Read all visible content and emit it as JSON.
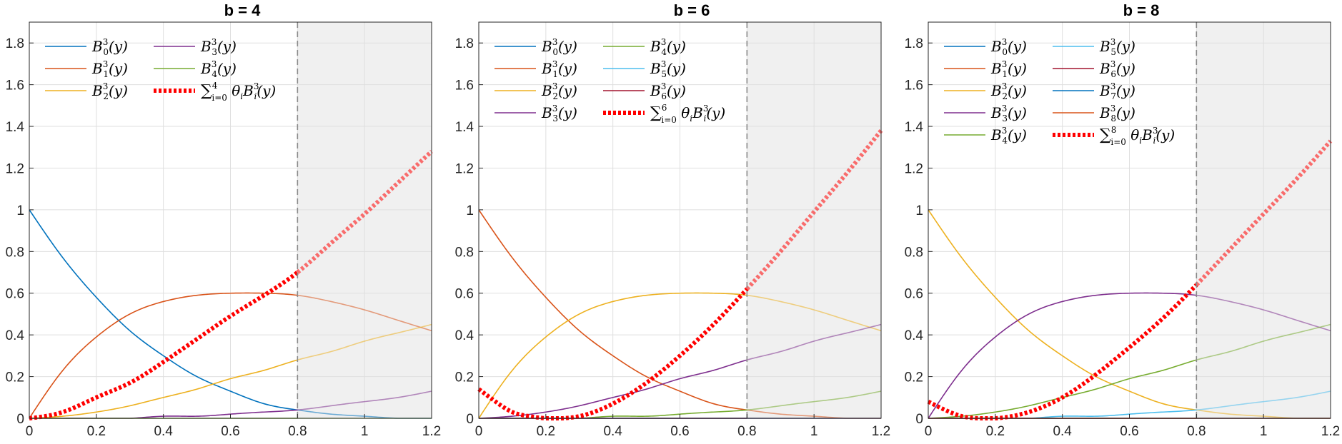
{
  "chart_data": [
    {
      "type": "line",
      "title": "b = 4",
      "xlabel": "",
      "ylabel": "",
      "xlim": [
        0,
        1.2
      ],
      "ylim": [
        0,
        1.9
      ],
      "x_ticks": [
        "0",
        "0.2",
        "0.4",
        "0.6",
        "0.8",
        "1",
        "1.2"
      ],
      "y_ticks": [
        "0",
        "0.2",
        "0.4",
        "0.6",
        "0.8",
        "1",
        "1.2",
        "1.4",
        "1.6",
        "1.8"
      ],
      "grid": true,
      "legend_position": "top-left",
      "legend_columns": 2,
      "shaded_region_x": [
        0.8,
        1.2
      ],
      "dashed_vline_x": 0.8,
      "series": [
        {
          "name": "B_0^3(y)",
          "color": "#0072BD",
          "x": [
            0,
            0.1,
            0.2,
            0.3,
            0.4,
            0.5,
            0.6,
            0.7,
            0.8,
            0.9,
            1.0,
            1.1,
            1.2
          ],
          "values": [
            1.0,
            0.77,
            0.58,
            0.42,
            0.3,
            0.2,
            0.13,
            0.07,
            0.04,
            0.02,
            0.01,
            0.0,
            0.0
          ]
        },
        {
          "name": "B_1^3(y)",
          "color": "#D95319",
          "x": [
            0,
            0.1,
            0.2,
            0.3,
            0.4,
            0.5,
            0.6,
            0.7,
            0.8,
            0.9,
            1.0,
            1.1,
            1.2
          ],
          "values": [
            0.0,
            0.23,
            0.39,
            0.5,
            0.56,
            0.59,
            0.6,
            0.6,
            0.59,
            0.56,
            0.52,
            0.47,
            0.42
          ]
        },
        {
          "name": "B_2^3(y)",
          "color": "#EDB120",
          "x": [
            0,
            0.1,
            0.2,
            0.3,
            0.4,
            0.5,
            0.6,
            0.7,
            0.8,
            0.9,
            1.0,
            1.1,
            1.2
          ],
          "values": [
            0.0,
            0.01,
            0.03,
            0.06,
            0.1,
            0.14,
            0.19,
            0.23,
            0.28,
            0.32,
            0.37,
            0.41,
            0.45
          ]
        },
        {
          "name": "B_3^3(y)",
          "color": "#7E2F8E",
          "x": [
            0,
            0.1,
            0.2,
            0.3,
            0.4,
            0.5,
            0.6,
            0.7,
            0.8,
            0.9,
            1.0,
            1.1,
            1.2
          ],
          "values": [
            0.0,
            0.0,
            0.0,
            0.0,
            0.01,
            0.01,
            0.02,
            0.03,
            0.04,
            0.06,
            0.08,
            0.1,
            0.13
          ]
        },
        {
          "name": "B_4^3(y)",
          "color": "#77AC30",
          "x": [
            0,
            0.1,
            0.2,
            0.3,
            0.4,
            0.5,
            0.6,
            0.7,
            0.8,
            0.9,
            1.0,
            1.1,
            1.2
          ],
          "values": [
            0,
            0,
            0,
            0,
            0,
            0,
            0,
            0,
            0,
            0,
            0,
            0,
            0
          ]
        },
        {
          "name": "∑_{i=0}^4 θ_i B_i^3(y)",
          "color": "#FF0000",
          "dotted": true,
          "x": [
            0,
            0.1,
            0.2,
            0.3,
            0.4,
            0.5,
            0.6,
            0.7,
            0.8,
            0.9,
            1.0,
            1.1,
            1.2
          ],
          "values": [
            0.0,
            0.03,
            0.1,
            0.17,
            0.27,
            0.38,
            0.49,
            0.59,
            0.7,
            0.84,
            0.98,
            1.13,
            1.28
          ]
        }
      ],
      "legend_labels": [
        {
          "base": "B",
          "sup": "3",
          "sub": "0",
          "arg": "(y)"
        },
        {
          "base": "B",
          "sup": "3",
          "sub": "1",
          "arg": "(y)"
        },
        {
          "base": "B",
          "sup": "3",
          "sub": "2",
          "arg": "(y)"
        },
        {
          "base": "B",
          "sup": "3",
          "sub": "3",
          "arg": "(y)"
        },
        {
          "base": "B",
          "sup": "3",
          "sub": "4",
          "arg": "(y)"
        },
        {
          "sum": "∑",
          "sum_sup": "4",
          "sum_sub": "i=0",
          "theta": " θ",
          "theta_sub": "i",
          "base": "B",
          "sup": "3",
          "sub": "i",
          "arg": "(y)"
        }
      ]
    },
    {
      "type": "line",
      "title": "b = 6",
      "xlabel": "",
      "ylabel": "",
      "xlim": [
        0,
        1.2
      ],
      "ylim": [
        0,
        1.9
      ],
      "x_ticks": [
        "0",
        "0.2",
        "0.4",
        "0.6",
        "0.8",
        "1",
        "1.2"
      ],
      "y_ticks": [
        "0",
        "0.2",
        "0.4",
        "0.6",
        "0.8",
        "1",
        "1.2",
        "1.4",
        "1.6",
        "1.8"
      ],
      "grid": true,
      "legend_position": "top-left",
      "legend_columns": 2,
      "shaded_region_x": [
        0.8,
        1.2
      ],
      "dashed_vline_x": 0.8,
      "series": [
        {
          "name": "B_0^3(y)",
          "color": "#0072BD",
          "x": [
            0,
            0.1,
            0.2,
            0.3,
            0.4,
            0.5,
            0.6,
            0.7,
            0.8,
            0.9,
            1.0,
            1.1,
            1.2
          ],
          "values": [
            0,
            0,
            0,
            0,
            0,
            0,
            0,
            0,
            0,
            0,
            0,
            0,
            0
          ]
        },
        {
          "name": "B_1^3(y)",
          "color": "#D95319",
          "x": [
            0,
            0.1,
            0.2,
            0.3,
            0.4,
            0.5,
            0.6,
            0.7,
            0.8,
            0.9,
            1.0,
            1.1,
            1.2
          ],
          "values": [
            1.0,
            0.77,
            0.58,
            0.42,
            0.3,
            0.2,
            0.13,
            0.07,
            0.04,
            0.02,
            0.01,
            0.0,
            0.0
          ]
        },
        {
          "name": "B_2^3(y)",
          "color": "#EDB120",
          "x": [
            0,
            0.1,
            0.2,
            0.3,
            0.4,
            0.5,
            0.6,
            0.7,
            0.8,
            0.9,
            1.0,
            1.1,
            1.2
          ],
          "values": [
            0.0,
            0.23,
            0.39,
            0.5,
            0.56,
            0.59,
            0.6,
            0.6,
            0.59,
            0.56,
            0.52,
            0.47,
            0.42
          ]
        },
        {
          "name": "B_3^3(y)",
          "color": "#7E2F8E",
          "x": [
            0,
            0.1,
            0.2,
            0.3,
            0.4,
            0.5,
            0.6,
            0.7,
            0.8,
            0.9,
            1.0,
            1.1,
            1.2
          ],
          "values": [
            0.0,
            0.01,
            0.03,
            0.06,
            0.1,
            0.14,
            0.19,
            0.23,
            0.28,
            0.32,
            0.37,
            0.41,
            0.45
          ]
        },
        {
          "name": "B_4^3(y)",
          "color": "#77AC30",
          "x": [
            0,
            0.1,
            0.2,
            0.3,
            0.4,
            0.5,
            0.6,
            0.7,
            0.8,
            0.9,
            1.0,
            1.1,
            1.2
          ],
          "values": [
            0.0,
            0.0,
            0.0,
            0.0,
            0.01,
            0.01,
            0.02,
            0.03,
            0.04,
            0.06,
            0.08,
            0.1,
            0.13
          ]
        },
        {
          "name": "B_5^3(y)",
          "color": "#4DBEEE",
          "x": [
            0,
            0.1,
            0.2,
            0.3,
            0.4,
            0.5,
            0.6,
            0.7,
            0.8,
            0.9,
            1.0,
            1.1,
            1.2
          ],
          "values": [
            0,
            0,
            0,
            0,
            0,
            0,
            0,
            0,
            0,
            0,
            0,
            0,
            0
          ]
        },
        {
          "name": "B_6^3(y)",
          "color": "#A2142F",
          "x": [
            0,
            0.1,
            0.2,
            0.3,
            0.4,
            0.5,
            0.6,
            0.7,
            0.8,
            0.9,
            1.0,
            1.1,
            1.2
          ],
          "values": [
            0,
            0,
            0,
            0,
            0,
            0,
            0,
            0,
            0,
            0,
            0,
            0,
            0
          ]
        },
        {
          "name": "∑_{i=0}^6 θ_i B_i^3(y)",
          "color": "#FF0000",
          "dotted": true,
          "x": [
            0,
            0.05,
            0.1,
            0.15,
            0.2,
            0.25,
            0.3,
            0.4,
            0.5,
            0.6,
            0.7,
            0.8,
            0.9,
            1.0,
            1.1,
            1.2
          ],
          "values": [
            0.14,
            0.08,
            0.03,
            0.01,
            0.0,
            0.0,
            0.01,
            0.07,
            0.17,
            0.3,
            0.45,
            0.62,
            0.8,
            0.99,
            1.18,
            1.38
          ]
        }
      ],
      "legend_labels": [
        {
          "base": "B",
          "sup": "3",
          "sub": "0",
          "arg": "(y)"
        },
        {
          "base": "B",
          "sup": "3",
          "sub": "1",
          "arg": "(y)"
        },
        {
          "base": "B",
          "sup": "3",
          "sub": "2",
          "arg": "(y)"
        },
        {
          "base": "B",
          "sup": "3",
          "sub": "3",
          "arg": "(y)"
        },
        {
          "base": "B",
          "sup": "3",
          "sub": "4",
          "arg": "(y)"
        },
        {
          "base": "B",
          "sup": "3",
          "sub": "5",
          "arg": "(y)"
        },
        {
          "base": "B",
          "sup": "3",
          "sub": "6",
          "arg": "(y)"
        },
        {
          "sum": "∑",
          "sum_sup": "6",
          "sum_sub": "i=0",
          "theta": " θ",
          "theta_sub": "i",
          "base": "B",
          "sup": "3",
          "sub": "i",
          "arg": "(y)"
        }
      ]
    },
    {
      "type": "line",
      "title": "b = 8",
      "xlabel": "",
      "ylabel": "",
      "xlim": [
        0,
        1.2
      ],
      "ylim": [
        0,
        1.9
      ],
      "x_ticks": [
        "0",
        "0.2",
        "0.4",
        "0.6",
        "0.8",
        "1",
        "1.2"
      ],
      "y_ticks": [
        "0",
        "0.2",
        "0.4",
        "0.6",
        "0.8",
        "1",
        "1.2",
        "1.4",
        "1.6",
        "1.8"
      ],
      "grid": true,
      "legend_position": "top-left",
      "legend_columns": 2,
      "shaded_region_x": [
        0.8,
        1.2
      ],
      "dashed_vline_x": 0.8,
      "series": [
        {
          "name": "B_0^3(y)",
          "color": "#0072BD",
          "x": [
            0,
            0.1,
            0.2,
            0.3,
            0.4,
            0.5,
            0.6,
            0.7,
            0.8,
            0.9,
            1.0,
            1.1,
            1.2
          ],
          "values": [
            0,
            0,
            0,
            0,
            0,
            0,
            0,
            0,
            0,
            0,
            0,
            0,
            0
          ]
        },
        {
          "name": "B_1^3(y)",
          "color": "#D95319",
          "x": [
            0,
            0.1,
            0.2,
            0.3,
            0.4,
            0.5,
            0.6,
            0.7,
            0.8,
            0.9,
            1.0,
            1.1,
            1.2
          ],
          "values": [
            0,
            0,
            0,
            0,
            0,
            0,
            0,
            0,
            0,
            0,
            0,
            0,
            0
          ]
        },
        {
          "name": "B_2^3(y)",
          "color": "#EDB120",
          "x": [
            0,
            0.1,
            0.2,
            0.3,
            0.4,
            0.5,
            0.6,
            0.7,
            0.8,
            0.9,
            1.0,
            1.1,
            1.2
          ],
          "values": [
            1.0,
            0.77,
            0.58,
            0.42,
            0.3,
            0.2,
            0.13,
            0.07,
            0.04,
            0.02,
            0.01,
            0.0,
            0.0
          ]
        },
        {
          "name": "B_3^3(y)",
          "color": "#7E2F8E",
          "x": [
            0,
            0.1,
            0.2,
            0.3,
            0.4,
            0.5,
            0.6,
            0.7,
            0.8,
            0.9,
            1.0,
            1.1,
            1.2
          ],
          "values": [
            0.0,
            0.23,
            0.39,
            0.5,
            0.56,
            0.59,
            0.6,
            0.6,
            0.59,
            0.56,
            0.52,
            0.47,
            0.42
          ]
        },
        {
          "name": "B_4^3(y)",
          "color": "#77AC30",
          "x": [
            0,
            0.1,
            0.2,
            0.3,
            0.4,
            0.5,
            0.6,
            0.7,
            0.8,
            0.9,
            1.0,
            1.1,
            1.2
          ],
          "values": [
            0.0,
            0.01,
            0.03,
            0.06,
            0.1,
            0.14,
            0.19,
            0.23,
            0.28,
            0.32,
            0.37,
            0.41,
            0.45
          ]
        },
        {
          "name": "B_5^3(y)",
          "color": "#4DBEEE",
          "x": [
            0,
            0.1,
            0.2,
            0.3,
            0.4,
            0.5,
            0.6,
            0.7,
            0.8,
            0.9,
            1.0,
            1.1,
            1.2
          ],
          "values": [
            0.0,
            0.0,
            0.0,
            0.0,
            0.01,
            0.01,
            0.02,
            0.03,
            0.04,
            0.06,
            0.08,
            0.1,
            0.13
          ]
        },
        {
          "name": "B_6^3(y)",
          "color": "#A2142F",
          "x": [
            0,
            0.1,
            0.2,
            0.3,
            0.4,
            0.5,
            0.6,
            0.7,
            0.8,
            0.9,
            1.0,
            1.1,
            1.2
          ],
          "values": [
            0,
            0,
            0,
            0,
            0,
            0,
            0,
            0,
            0,
            0,
            0,
            0,
            0
          ]
        },
        {
          "name": "B_7^3(y)",
          "color": "#0072BD",
          "x": [
            0,
            0.1,
            0.2,
            0.3,
            0.4,
            0.5,
            0.6,
            0.7,
            0.8,
            0.9,
            1.0,
            1.1,
            1.2
          ],
          "values": [
            0,
            0,
            0,
            0,
            0,
            0,
            0,
            0,
            0,
            0,
            0,
            0,
            0
          ]
        },
        {
          "name": "B_8^3(y)",
          "color": "#D95319",
          "x": [
            0,
            0.1,
            0.2,
            0.3,
            0.4,
            0.5,
            0.6,
            0.7,
            0.8,
            0.9,
            1.0,
            1.1,
            1.2
          ],
          "values": [
            0,
            0,
            0,
            0,
            0,
            0,
            0,
            0,
            0,
            0,
            0,
            0,
            0
          ]
        },
        {
          "name": "∑_{i=0}^8 θ_i B_i^3(y)",
          "color": "#FF0000",
          "dotted": true,
          "x": [
            0,
            0.05,
            0.1,
            0.15,
            0.2,
            0.25,
            0.3,
            0.4,
            0.5,
            0.6,
            0.7,
            0.8,
            0.9,
            1.0,
            1.1,
            1.2
          ],
          "values": [
            0.08,
            0.04,
            0.01,
            0.0,
            0.0,
            0.01,
            0.03,
            0.1,
            0.21,
            0.34,
            0.48,
            0.64,
            0.81,
            0.98,
            1.15,
            1.33
          ]
        }
      ],
      "legend_labels": [
        {
          "base": "B",
          "sup": "3",
          "sub": "0",
          "arg": "(y)"
        },
        {
          "base": "B",
          "sup": "3",
          "sub": "1",
          "arg": "(y)"
        },
        {
          "base": "B",
          "sup": "3",
          "sub": "2",
          "arg": "(y)"
        },
        {
          "base": "B",
          "sup": "3",
          "sub": "3",
          "arg": "(y)"
        },
        {
          "base": "B",
          "sup": "3",
          "sub": "4",
          "arg": "(y)"
        },
        {
          "base": "B",
          "sup": "3",
          "sub": "5",
          "arg": "(y)"
        },
        {
          "base": "B",
          "sup": "3",
          "sub": "6",
          "arg": "(y)"
        },
        {
          "base": "B",
          "sup": "3",
          "sub": "7",
          "arg": "(y)"
        },
        {
          "base": "B",
          "sup": "3",
          "sub": "8",
          "arg": "(y)"
        },
        {
          "sum": "∑",
          "sum_sup": "8",
          "sum_sub": "i=0",
          "theta": " θ",
          "theta_sub": "i",
          "base": "B",
          "sup": "3",
          "sub": "i",
          "arg": "(y)"
        }
      ]
    }
  ]
}
